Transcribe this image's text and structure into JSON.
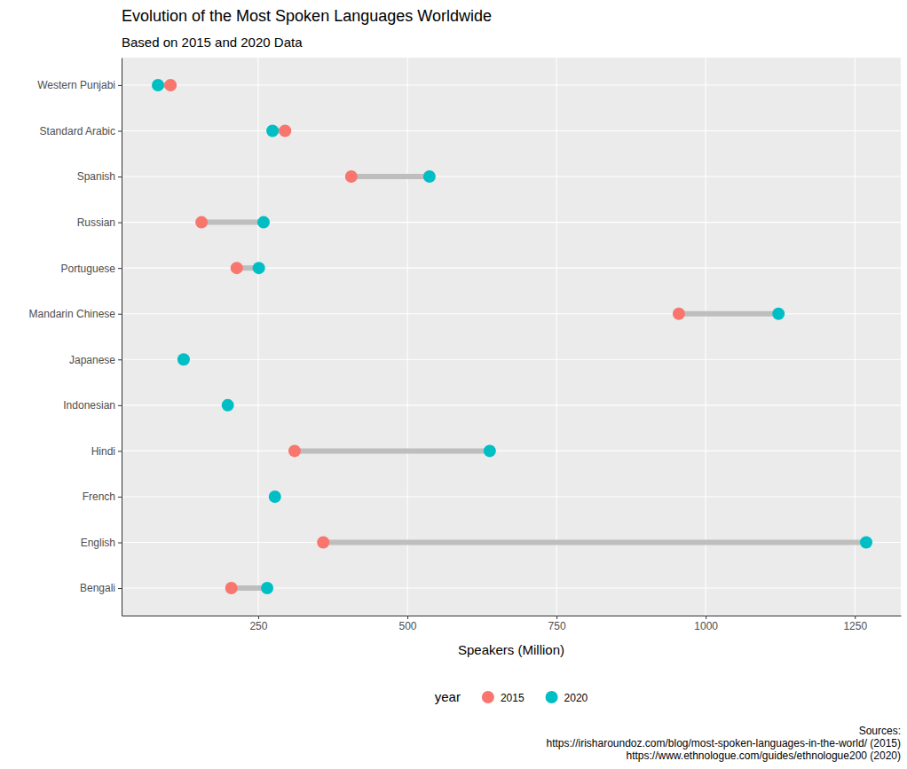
{
  "chart_data": {
    "type": "dumbbell",
    "title": "Evolution of the Most Spoken Languages Worldwide",
    "subtitle": "Based on 2015 and 2020 Data",
    "x_label": "Speakers (Million)",
    "legend_title": "year",
    "caption": [
      "Sources:",
      "https://irisharoundoz.com/blog/most-spoken-languages-in-the-world/ (2015)",
      "https://www.ethnologue.com/guides/ethnologue200 (2020)"
    ],
    "orientation": "horizontal",
    "categories": [
      "Western Punjabi",
      "Standard Arabic",
      "Spanish",
      "Russian",
      "Portuguese",
      "Mandarin Chinese",
      "Japanese",
      "Indonesian",
      "Hindi",
      "French",
      "English",
      "Bengali"
    ],
    "series": [
      {
        "name": "2015",
        "color": "#F8766D",
        "values": [
          103,
          295,
          406,
          155,
          214,
          955,
          null,
          null,
          311,
          null,
          359,
          205
        ]
      },
      {
        "name": "2020",
        "color": "#00BFC4",
        "values": [
          82,
          274,
          537,
          259,
          251,
          1122,
          125,
          199,
          638,
          278,
          1269,
          265
        ]
      }
    ],
    "xlim": [
      21,
      1327
    ],
    "xticks": [
      250,
      500,
      750,
      1000,
      1250
    ],
    "grid": true,
    "legend": "bottom"
  }
}
